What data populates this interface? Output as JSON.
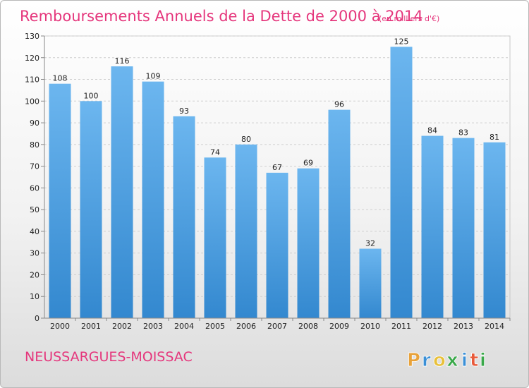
{
  "chart_data": {
    "type": "bar",
    "title": "Remboursements Annuels de la Dette de 2000 à 2014",
    "subtitle": "(en milliers d'€)",
    "categories": [
      "2000",
      "2001",
      "2002",
      "2003",
      "2004",
      "2005",
      "2006",
      "2007",
      "2008",
      "2009",
      "2010",
      "2011",
      "2012",
      "2013",
      "2014"
    ],
    "values": [
      108,
      100,
      116,
      109,
      93,
      74,
      80,
      67,
      69,
      96,
      32,
      125,
      84,
      83,
      81
    ],
    "ylim": [
      0,
      130
    ],
    "yticks": [
      0,
      10,
      20,
      30,
      40,
      50,
      60,
      70,
      80,
      90,
      100,
      110,
      120,
      130
    ],
    "grid": true,
    "bar_color": "#4a9ee0",
    "bar_color_light": "#6fb8f0",
    "bar_color_dark": "#2f7fc4"
  },
  "footer": {
    "commune": "NEUSSARGUES-MOISSAC",
    "logo_letters": [
      "P",
      "r",
      "o",
      "x",
      "i",
      "t",
      "i"
    ],
    "logo_colors": [
      "#e8a23a",
      "#3a8fd6",
      "#e8c03a",
      "#3aa84a",
      "#3a8fd6",
      "#e85a3a",
      "#3aa84a"
    ]
  },
  "colors": {
    "accent": "#e5367c"
  }
}
